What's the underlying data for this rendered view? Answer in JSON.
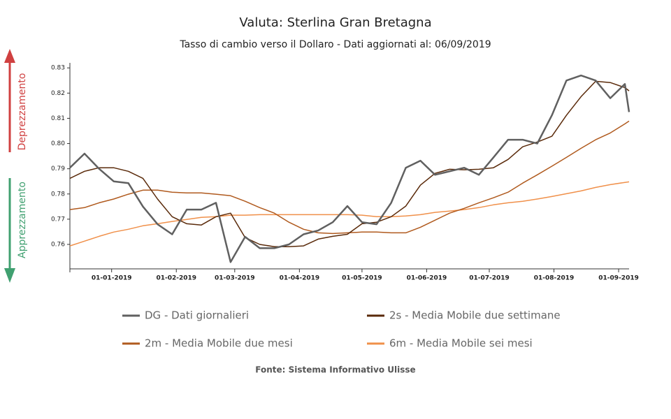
{
  "chart_data": {
    "type": "line",
    "title": "Valuta: Sterlina Gran Bretagna",
    "subtitle": "Tasso di cambio verso il Dollaro - Dati aggiornati al: 06/09/2019",
    "source": "Fonte: Sistema Informativo Ulisse",
    "arrow_up_label": "Deprezzamento",
    "arrow_down_label": "Apprezzamento",
    "x": [
      "2018-12-12",
      "2018-12-19",
      "2018-12-26",
      "2019-01-02",
      "2019-01-09",
      "2019-01-16",
      "2019-01-23",
      "2019-01-30",
      "2019-02-06",
      "2019-02-13",
      "2019-02-20",
      "2019-02-27",
      "2019-03-06",
      "2019-03-13",
      "2019-03-20",
      "2019-03-27",
      "2019-04-03",
      "2019-04-10",
      "2019-04-17",
      "2019-04-24",
      "2019-05-01",
      "2019-05-08",
      "2019-05-15",
      "2019-05-22",
      "2019-05-29",
      "2019-06-05",
      "2019-06-12",
      "2019-06-19",
      "2019-06-26",
      "2019-07-03",
      "2019-07-10",
      "2019-07-17",
      "2019-07-24",
      "2019-07-31",
      "2019-08-07",
      "2019-08-14",
      "2019-08-21",
      "2019-08-28",
      "2019-09-04",
      "2019-09-06"
    ],
    "series": [
      {
        "name": "DG - Dati giornalieri",
        "color": "#606060",
        "width": 2.5,
        "values": [
          0.7904,
          0.796,
          0.79,
          0.785,
          0.7843,
          0.775,
          0.768,
          0.764,
          0.7738,
          0.7738,
          0.7765,
          0.753,
          0.763,
          0.7585,
          0.7585,
          0.76,
          0.764,
          0.7655,
          0.7688,
          0.7752,
          0.7688,
          0.768,
          0.7765,
          0.7904,
          0.7932,
          0.7876,
          0.789,
          0.7904,
          0.7876,
          0.7945,
          0.8015,
          0.8015,
          0.8,
          0.8112,
          0.825,
          0.827,
          0.825,
          0.818,
          0.8236,
          0.8125
        ]
      },
      {
        "name": "2s - Media Mobile due settimane",
        "color": "#5a2a0a",
        "width": 1.5,
        "values": [
          0.7862,
          0.789,
          0.7904,
          0.7904,
          0.789,
          0.7862,
          0.778,
          0.771,
          0.7682,
          0.7677,
          0.771,
          0.7724,
          0.7627,
          0.76,
          0.7591,
          0.7591,
          0.7594,
          0.7621,
          0.7632,
          0.764,
          0.7682,
          0.7688,
          0.771,
          0.7752,
          0.7835,
          0.7882,
          0.7898,
          0.7896,
          0.7898,
          0.7904,
          0.7937,
          0.7987,
          0.8006,
          0.8029,
          0.8112,
          0.8186,
          0.8247,
          0.8242,
          0.8222,
          0.8209
        ]
      },
      {
        "name": "2m - Media Mobile due mesi",
        "color": "#b05a1e",
        "width": 1.5,
        "values": [
          0.7738,
          0.7746,
          0.7765,
          0.778,
          0.7799,
          0.7815,
          0.7815,
          0.7807,
          0.7804,
          0.7804,
          0.7799,
          0.7793,
          0.7771,
          0.7746,
          0.7724,
          0.7688,
          0.766,
          0.7646,
          0.7643,
          0.7646,
          0.7649,
          0.7649,
          0.7646,
          0.7646,
          0.7668,
          0.7696,
          0.7724,
          0.7743,
          0.7765,
          0.7785,
          0.7807,
          0.7843,
          0.7876,
          0.791,
          0.7945,
          0.7981,
          0.8015,
          0.8042,
          0.8078,
          0.8089
        ]
      },
      {
        "name": "6m - Media Mobile sei mesi",
        "color": "#f0904a",
        "width": 1.5,
        "values": [
          0.7594,
          0.7613,
          0.7632,
          0.7649,
          0.766,
          0.7674,
          0.7682,
          0.7691,
          0.7699,
          0.7707,
          0.771,
          0.7716,
          0.7716,
          0.7718,
          0.7718,
          0.7718,
          0.7718,
          0.7718,
          0.7718,
          0.7718,
          0.7716,
          0.771,
          0.771,
          0.7713,
          0.7718,
          0.7727,
          0.7732,
          0.7738,
          0.7746,
          0.7757,
          0.7765,
          0.7771,
          0.778,
          0.779,
          0.7801,
          0.7812,
          0.7826,
          0.7837,
          0.7846,
          0.7848
        ]
      }
    ],
    "xlim": [
      "2018-12-12",
      "2019-09-06"
    ],
    "xticks": [
      {
        "value": "2019-01-01",
        "label": "01-01-2019"
      },
      {
        "value": "2019-02-01",
        "label": "01-02-2019"
      },
      {
        "value": "2019-03-01",
        "label": "01-03-2019"
      },
      {
        "value": "2019-04-01",
        "label": "01-04-2019"
      },
      {
        "value": "2019-05-01",
        "label": "01-05-2019"
      },
      {
        "value": "2019-06-01",
        "label": "01-06-2019"
      },
      {
        "value": "2019-07-01",
        "label": "01-07-2019"
      },
      {
        "value": "2019-08-01",
        "label": "01-08-2019"
      },
      {
        "value": "2019-09-01",
        "label": "01-09-2019"
      }
    ],
    "ylim": [
      0.7503,
      0.832
    ],
    "yticks": [
      0.76,
      0.77,
      0.78,
      0.79,
      {
        "value": 0.8,
        "label": "0.80"
      },
      0.81,
      0.82,
      0.83
    ],
    "grid": false
  }
}
